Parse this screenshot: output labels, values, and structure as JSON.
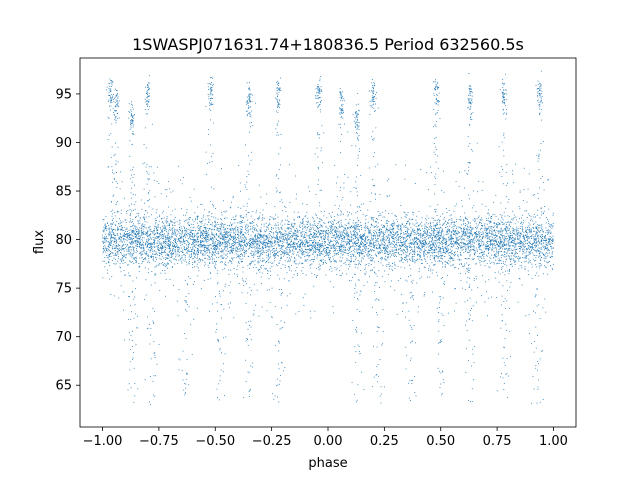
{
  "chart_data": {
    "type": "scatter",
    "title": "1SWASPJ071631.74+180836.5 Period 632560.5s",
    "xlabel": "phase",
    "ylabel": "flux",
    "xlim": [
      -1.1,
      1.1
    ],
    "ylim": [
      60.7,
      98.7
    ],
    "xticks": [
      -1.0,
      -0.75,
      -0.5,
      -0.25,
      0.0,
      0.25,
      0.5,
      0.75,
      1.0
    ],
    "xtick_labels": [
      "−1.00",
      "−0.75",
      "−0.50",
      "−0.25",
      "0.00",
      "0.25",
      "0.50",
      "0.75",
      "1.00"
    ],
    "yticks": [
      65,
      70,
      75,
      80,
      85,
      90,
      95
    ],
    "ytick_labels": [
      "65",
      "70",
      "75",
      "80",
      "85",
      "90",
      "95"
    ],
    "grid": false,
    "series": [
      {
        "color": "#1f77b4",
        "marker_size": 0.5,
        "phase_range": [
          -1.0,
          1.0
        ],
        "main_band": {
          "center": 79.8,
          "spread": 1.3
        },
        "high_flux_clusters": [
          {
            "x": -0.965,
            "y": 95.0
          },
          {
            "x": -0.94,
            "y": 93.8
          },
          {
            "x": -0.87,
            "y": 92.3
          },
          {
            "x": -0.8,
            "y": 95.0
          },
          {
            "x": -0.52,
            "y": 95.0
          },
          {
            "x": -0.35,
            "y": 94.5
          },
          {
            "x": -0.22,
            "y": 95.0
          },
          {
            "x": -0.04,
            "y": 95.0
          },
          {
            "x": 0.06,
            "y": 94.0
          },
          {
            "x": 0.13,
            "y": 92.3
          },
          {
            "x": 0.2,
            "y": 95.0
          },
          {
            "x": 0.48,
            "y": 95.0
          },
          {
            "x": 0.63,
            "y": 94.5
          },
          {
            "x": 0.78,
            "y": 95.0
          },
          {
            "x": 0.94,
            "y": 95.0
          }
        ],
        "low_flux_streaks": [
          -0.87,
          -0.78,
          -0.63,
          -0.48,
          -0.35,
          -0.22,
          0.13,
          0.22,
          0.37,
          0.5,
          0.63,
          0.78,
          0.93
        ]
      }
    ]
  }
}
